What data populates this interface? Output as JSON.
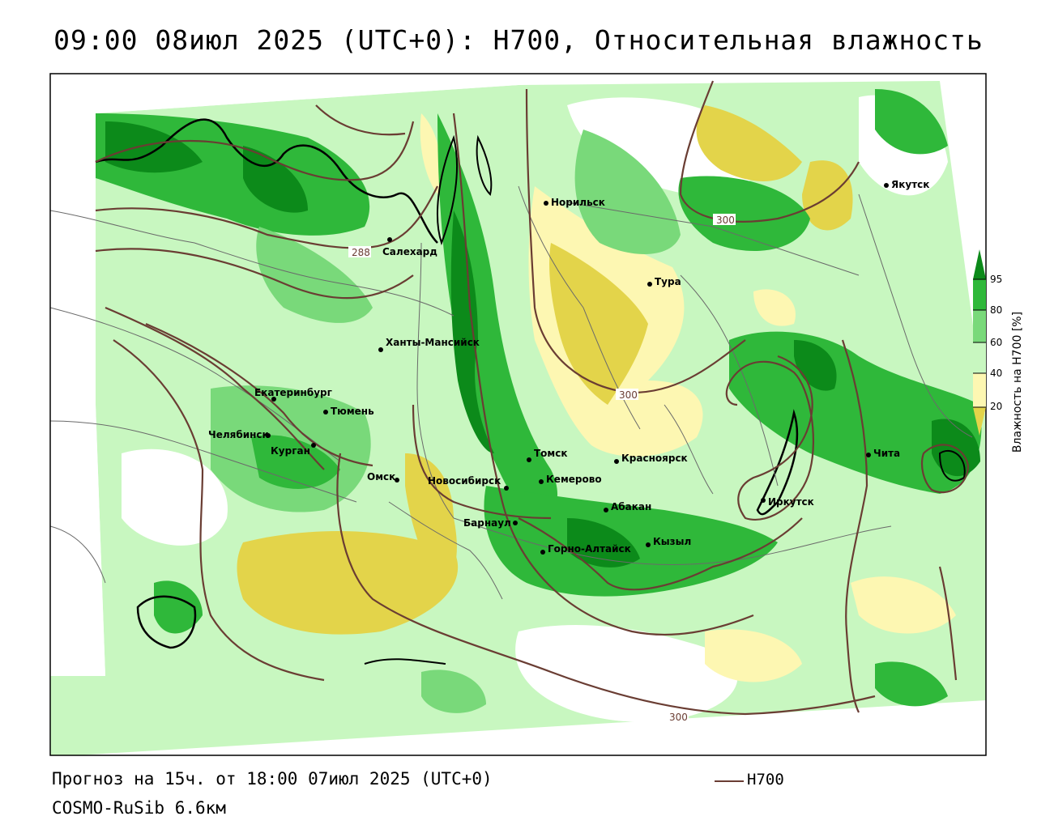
{
  "title": "09:00 08июл 2025 (UTC+0): H700, Относительная влажность",
  "forecast_text": "Прогноз на 15ч. от 18:00 07июл 2025 (UTC+0)",
  "model_text": "COSMO-RuSib 6.6км",
  "legend": {
    "line_label": "H700",
    "line_color": "#6a3d33"
  },
  "colorbar": {
    "title": "Влажность на H700 [%]",
    "ticks": [
      "95",
      "80",
      "60",
      "40",
      "20"
    ],
    "colors": {
      "dark_green": "#0c8a1a",
      "green": "#2fb83a",
      "mid_green": "#79d97a",
      "light_green": "#c8f7c0",
      "white": "#ffffff",
      "light_yellow": "#fdf7b2",
      "yellow": "#e3d44a"
    }
  },
  "cities": [
    {
      "name": "Норильск"
    },
    {
      "name": "Якутск"
    },
    {
      "name": "Салехард"
    },
    {
      "name": "Тура"
    },
    {
      "name": "Ханты-Мансийск"
    },
    {
      "name": "Екатеринбург"
    },
    {
      "name": "Тюмень"
    },
    {
      "name": "Челябинск"
    },
    {
      "name": "Курган"
    },
    {
      "name": "Омск"
    },
    {
      "name": "Новосибирск"
    },
    {
      "name": "Томск"
    },
    {
      "name": "Кемерово"
    },
    {
      "name": "Красноярск"
    },
    {
      "name": "Барнаул"
    },
    {
      "name": "Абакан"
    },
    {
      "name": "Горно-Алтайск"
    },
    {
      "name": "Кызыл"
    },
    {
      "name": "Иркутск"
    },
    {
      "name": "Чита"
    }
  ],
  "contour_labels": [
    "288",
    "300",
    "300",
    "300"
  ]
}
